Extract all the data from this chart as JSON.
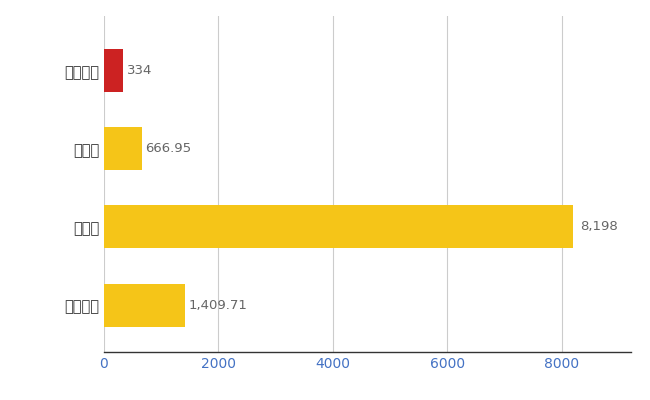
{
  "categories": [
    "山ノ内町",
    "県平均",
    "県最大",
    "全国平均"
  ],
  "values": [
    334,
    666.95,
    8198,
    1409.71
  ],
  "bar_colors": [
    "#cc2222",
    "#f5c518",
    "#f5c518",
    "#f5c518"
  ],
  "value_labels": [
    "334",
    "666.95",
    "8,198",
    "1,409.71"
  ],
  "xlim": [
    0,
    9200
  ],
  "xticks": [
    0,
    2000,
    4000,
    6000,
    8000
  ],
  "xtick_labels": [
    "0",
    "2000",
    "4000",
    "6000",
    "8000"
  ],
  "background_color": "#ffffff",
  "grid_color": "#cccccc",
  "bar_height": 0.55,
  "label_fontsize": 10.5,
  "tick_fontsize": 10,
  "value_label_fontsize": 9.5,
  "figsize": [
    6.5,
    4.0
  ],
  "dpi": 100
}
